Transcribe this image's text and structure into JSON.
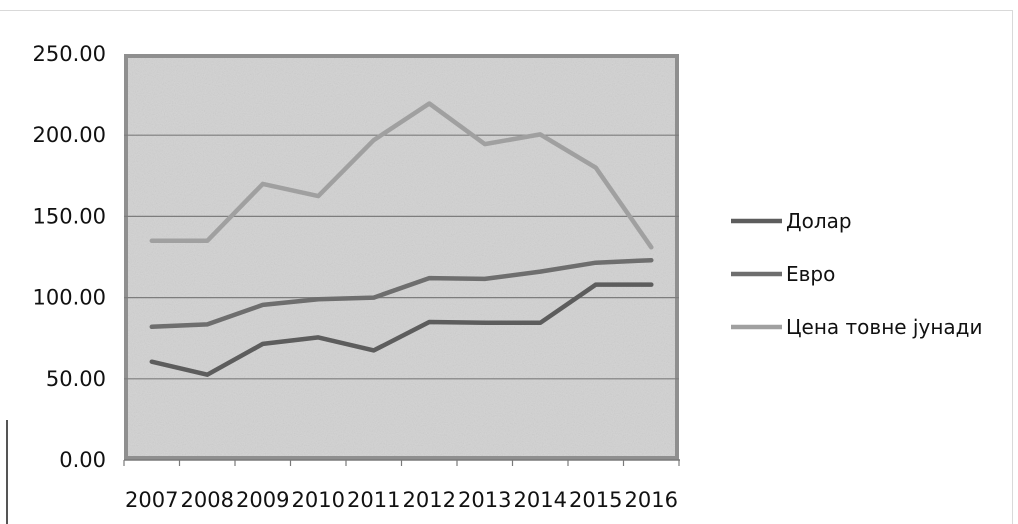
{
  "chart_data": {
    "type": "line",
    "categories": [
      "2007",
      "2008",
      "2009",
      "2010",
      "2011",
      "2012",
      "2013",
      "2014",
      "2015",
      "2016"
    ],
    "y_tick_labels": [
      "0.00",
      "50.00",
      "100.00",
      "150.00",
      "200.00",
      "250.00"
    ],
    "ylim": [
      0,
      250
    ],
    "grid": true,
    "legend_position": "right",
    "series": [
      {
        "name": "Долар",
        "color": "#5d5d5d",
        "values": [
          60.5,
          52.5,
          71.5,
          75.5,
          67.5,
          85,
          84.5,
          84.5,
          108,
          108
        ]
      },
      {
        "name": "Евро",
        "color": "#6e6e6e",
        "values": [
          82,
          83.5,
          95.5,
          99,
          100,
          112,
          111.5,
          116,
          121.5,
          123
        ]
      },
      {
        "name": "Цена товне јунади",
        "color": "#a0a0a0",
        "values": [
          135,
          135,
          170,
          162.5,
          197,
          219.5,
          194.5,
          200.5,
          180,
          131
        ]
      }
    ]
  }
}
